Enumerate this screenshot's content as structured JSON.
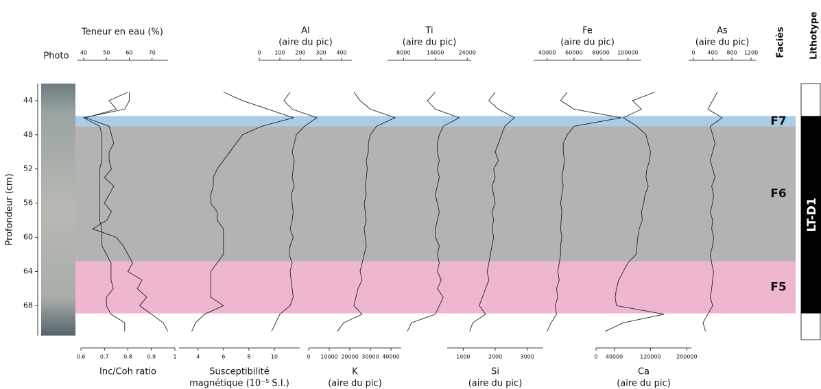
{
  "chart_data": {
    "type": "log",
    "ylabel": "Profondeur (cm)",
    "ylim": [
      42,
      71.5
    ],
    "yticks": [
      44,
      48,
      52,
      56,
      60,
      64,
      68
    ],
    "photo_label": "Photo",
    "depth": [
      43,
      44,
      45,
      46,
      47,
      48,
      49,
      50,
      51,
      52,
      53,
      54,
      55,
      56,
      57,
      58,
      59,
      60,
      61,
      62,
      63,
      64,
      65,
      66,
      67,
      68,
      69,
      70,
      71
    ],
    "tracks": [
      {
        "label": [
          "Teneur en eau (%)"
        ],
        "axis": "top",
        "xlim": [
          37,
          77
        ],
        "xticks": [
          40,
          50,
          60,
          70
        ],
        "values": [
          60,
          60,
          58,
          40,
          47,
          48,
          48,
          48,
          48,
          47,
          47,
          47,
          47,
          47,
          47,
          47,
          48,
          48,
          48,
          50,
          52,
          52,
          52,
          53,
          50,
          50,
          52,
          58,
          58
        ]
      },
      {
        "label": [
          "Inc/Coh ratio"
        ],
        "axis": "bottom",
        "xlim": [
          0.6,
          1.0
        ],
        "xticks": [
          0.6,
          0.7,
          0.8,
          0.9,
          1
        ],
        "values": [
          0.8,
          0.72,
          0.75,
          0.62,
          0.72,
          0.73,
          0.74,
          0.72,
          0.72,
          0.73,
          0.7,
          0.74,
          0.72,
          0.7,
          0.73,
          0.71,
          0.65,
          0.75,
          0.78,
          0.8,
          0.82,
          0.8,
          0.86,
          0.84,
          0.88,
          0.85,
          0.9,
          0.95,
          0.97
        ]
      },
      {
        "label": [
          "Susceptibilité",
          "magnétique (10⁻⁵ S.I.)"
        ],
        "axis": "bottom",
        "xlim": [
          2.5,
          12
        ],
        "xticks": [
          4,
          6,
          8,
          10
        ],
        "values": [
          6,
          7.5,
          9.5,
          11.5,
          9,
          7.5,
          7,
          6.5,
          6,
          5.5,
          5.2,
          5.2,
          5,
          5,
          5.5,
          5.5,
          6,
          6,
          6,
          6,
          5.5,
          5,
          5,
          5,
          5,
          6,
          4.5,
          3.8,
          3.5
        ]
      },
      {
        "label": [
          "Al",
          "(aire du pic)"
        ],
        "axis": "top",
        "xlim": [
          0,
          450
        ],
        "xticks": [
          0,
          100,
          200,
          300,
          400
        ],
        "values": [
          150,
          120,
          160,
          280,
          220,
          180,
          170,
          160,
          170,
          165,
          160,
          170,
          155,
          160,
          165,
          160,
          150,
          165,
          150,
          145,
          160,
          150,
          155,
          160,
          165,
          150,
          100,
          80,
          60
        ]
      },
      {
        "label": [
          "K",
          "(aire du pic)"
        ],
        "axis": "bottom",
        "xlim": [
          0,
          45000
        ],
        "xticks": [
          0,
          10000,
          20000,
          30000,
          40000
        ],
        "values": [
          22000,
          25000,
          30000,
          42000,
          33000,
          30000,
          29000,
          29000,
          28000,
          28500,
          28000,
          27500,
          28000,
          27000,
          27500,
          28000,
          27000,
          27500,
          28000,
          27000,
          26000,
          25000,
          26000,
          24000,
          23000,
          22000,
          26000,
          17000,
          14000
        ]
      },
      {
        "label": [
          "Ti",
          "(aire du pic)"
        ],
        "axis": "top",
        "xlim": [
          4000,
          25000
        ],
        "xticks": [
          8000,
          16000,
          24000
        ],
        "values": [
          16000,
          14000,
          16000,
          22000,
          18000,
          17000,
          16500,
          16500,
          17000,
          16500,
          17000,
          16500,
          16000,
          16500,
          17000,
          16500,
          16000,
          16000,
          17000,
          16500,
          17000,
          16500,
          17500,
          16500,
          18000,
          17000,
          16000,
          10000,
          9000
        ]
      },
      {
        "label": [
          "Si",
          "(aire du pic)"
        ],
        "axis": "bottom",
        "xlim": [
          500,
          3500
        ],
        "xticks": [
          1000,
          2000,
          3000
        ],
        "values": [
          2000,
          1800,
          2100,
          2600,
          2300,
          2200,
          2100,
          2000,
          2100,
          1950,
          2000,
          1900,
          1950,
          2000,
          1900,
          1950,
          1900,
          1950,
          1900,
          1850,
          1800,
          1750,
          1800,
          1700,
          1600,
          1500,
          1700,
          1300,
          1200
        ]
      },
      {
        "label": [
          "Fe",
          "(aire du pic)"
        ],
        "axis": "top",
        "xlim": [
          30000,
          110000
        ],
        "xticks": [
          40000,
          60000,
          80000,
          100000
        ],
        "values": [
          55000,
          50000,
          60000,
          95000,
          60000,
          55000,
          52000,
          52000,
          53000,
          52000,
          51000,
          52000,
          51000,
          50000,
          51000,
          50500,
          50000,
          51000,
          50000,
          50000,
          49000,
          48000,
          49000,
          47000,
          48000,
          46000,
          47000,
          43000,
          40000
        ]
      },
      {
        "label": [
          "Ca",
          "(aire du pic)"
        ],
        "axis": "bottom",
        "xlim": [
          0,
          210000
        ],
        "xticks": [
          0,
          40000,
          120000,
          200000
        ],
        "values": [
          130000,
          80000,
          100000,
          60000,
          90000,
          110000,
          115000,
          120000,
          118000,
          112000,
          110000,
          115000,
          108000,
          105000,
          100000,
          102000,
          95000,
          92000,
          90000,
          88000,
          70000,
          60000,
          50000,
          45000,
          42000,
          45000,
          150000,
          60000,
          20000
        ]
      },
      {
        "label": [
          "As",
          "(aire du pic)"
        ],
        "axis": "top",
        "xlim": [
          -100,
          1300
        ],
        "xticks": [
          0,
          400,
          800,
          1200
        ],
        "values": [
          500,
          400,
          300,
          600,
          350,
          400,
          450,
          400,
          350,
          400,
          450,
          380,
          420,
          400,
          350,
          400,
          380,
          420,
          400,
          350,
          380,
          420,
          400,
          380,
          350,
          400,
          300,
          200,
          250
        ]
      }
    ],
    "facies_label": "Faciès",
    "facies": [
      {
        "name": "F7",
        "top": 45.8,
        "bottom": 47.0,
        "color": "#a9cde6"
      },
      {
        "name": "F6",
        "top": 47.0,
        "bottom": 62.8,
        "color": "#b3b3b3"
      },
      {
        "name": "F5",
        "top": 62.8,
        "bottom": 68.9,
        "color": "#eeb7cf"
      }
    ],
    "lithotype_label": "Lithotype",
    "lithotype": {
      "name": "LT-D1",
      "top": 45.8,
      "bottom": 68.9,
      "color": "#000000"
    }
  }
}
